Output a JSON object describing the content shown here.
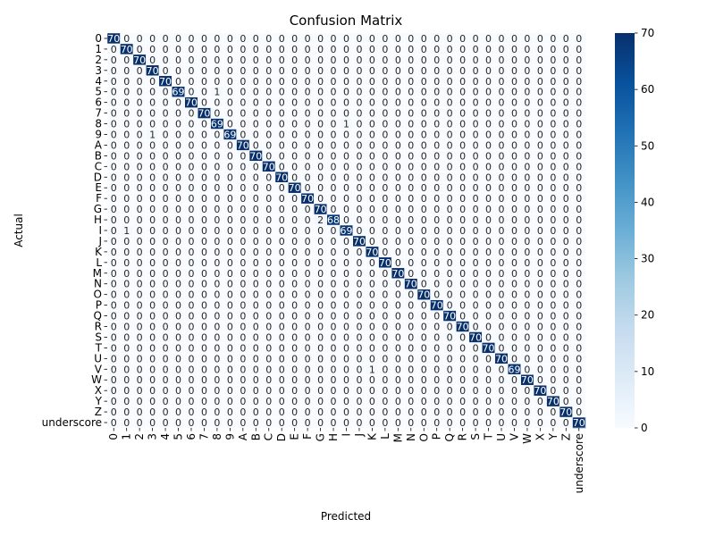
{
  "chart_data": {
    "type": "heatmap",
    "title": "Confusion Matrix",
    "xlabel": "Predicted",
    "ylabel": "Actual",
    "labels": [
      "0",
      "1",
      "2",
      "3",
      "4",
      "5",
      "6",
      "7",
      "8",
      "9",
      "A",
      "B",
      "C",
      "D",
      "E",
      "F",
      "G",
      "H",
      "I",
      "J",
      "K",
      "L",
      "M",
      "N",
      "O",
      "P",
      "Q",
      "R",
      "S",
      "T",
      "U",
      "V",
      "W",
      "X",
      "Y",
      "Z",
      "underscore"
    ],
    "diagonal": [
      70,
      70,
      70,
      70,
      70,
      69,
      70,
      70,
      69,
      69,
      70,
      70,
      70,
      70,
      70,
      70,
      70,
      68,
      69,
      70,
      70,
      70,
      70,
      70,
      70,
      70,
      70,
      70,
      70,
      70,
      70,
      69,
      70,
      70,
      70,
      70,
      70
    ],
    "off_diagonal": [
      {
        "actual": "5",
        "predicted": "8",
        "value": 1
      },
      {
        "actual": "8",
        "predicted": "I",
        "value": 1
      },
      {
        "actual": "9",
        "predicted": "3",
        "value": 1
      },
      {
        "actual": "H",
        "predicted": "G",
        "value": 2
      },
      {
        "actual": "I",
        "predicted": "1",
        "value": 1
      },
      {
        "actual": "V",
        "predicted": "K",
        "value": 1
      }
    ],
    "colorbar": {
      "min": 0,
      "max": 70,
      "ticks": [
        0,
        10,
        20,
        30,
        40,
        50,
        60,
        70
      ]
    },
    "colormap": {
      "low": "#f7fbff",
      "mid": "#6baed6",
      "high": "#08306b"
    }
  }
}
